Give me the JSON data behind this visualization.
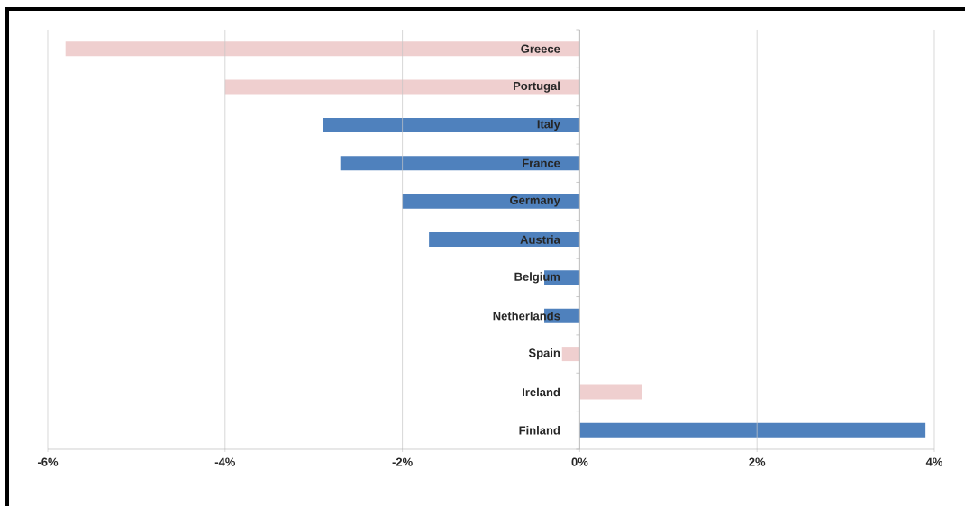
{
  "chart_data": {
    "type": "bar",
    "orientation": "horizontal",
    "categories": [
      "Greece",
      "Portugal",
      "Italy",
      "France",
      "Germany",
      "Austria",
      "Belgium",
      "Netherlands",
      "Spain",
      "Ireland",
      "Finland"
    ],
    "values": [
      -5.8,
      -4.0,
      -2.9,
      -2.7,
      -2.0,
      -1.7,
      -0.4,
      -0.4,
      -0.2,
      0.7,
      3.9
    ],
    "colors": [
      "#efcfcf",
      "#efcfcf",
      "#4f81bd",
      "#4f81bd",
      "#4f81bd",
      "#4f81bd",
      "#4f81bd",
      "#4f81bd",
      "#efcfcf",
      "#efcfcf",
      "#4f81bd"
    ],
    "xlim": [
      -6,
      4
    ],
    "xticks": [
      {
        "value": -6,
        "label": "-6%"
      },
      {
        "value": -4,
        "label": "-4%"
      },
      {
        "value": -2,
        "label": "-2%"
      },
      {
        "value": 0,
        "label": "0%"
      },
      {
        "value": 2,
        "label": "2%"
      },
      {
        "value": 4,
        "label": "4%"
      }
    ],
    "grid": "x"
  }
}
